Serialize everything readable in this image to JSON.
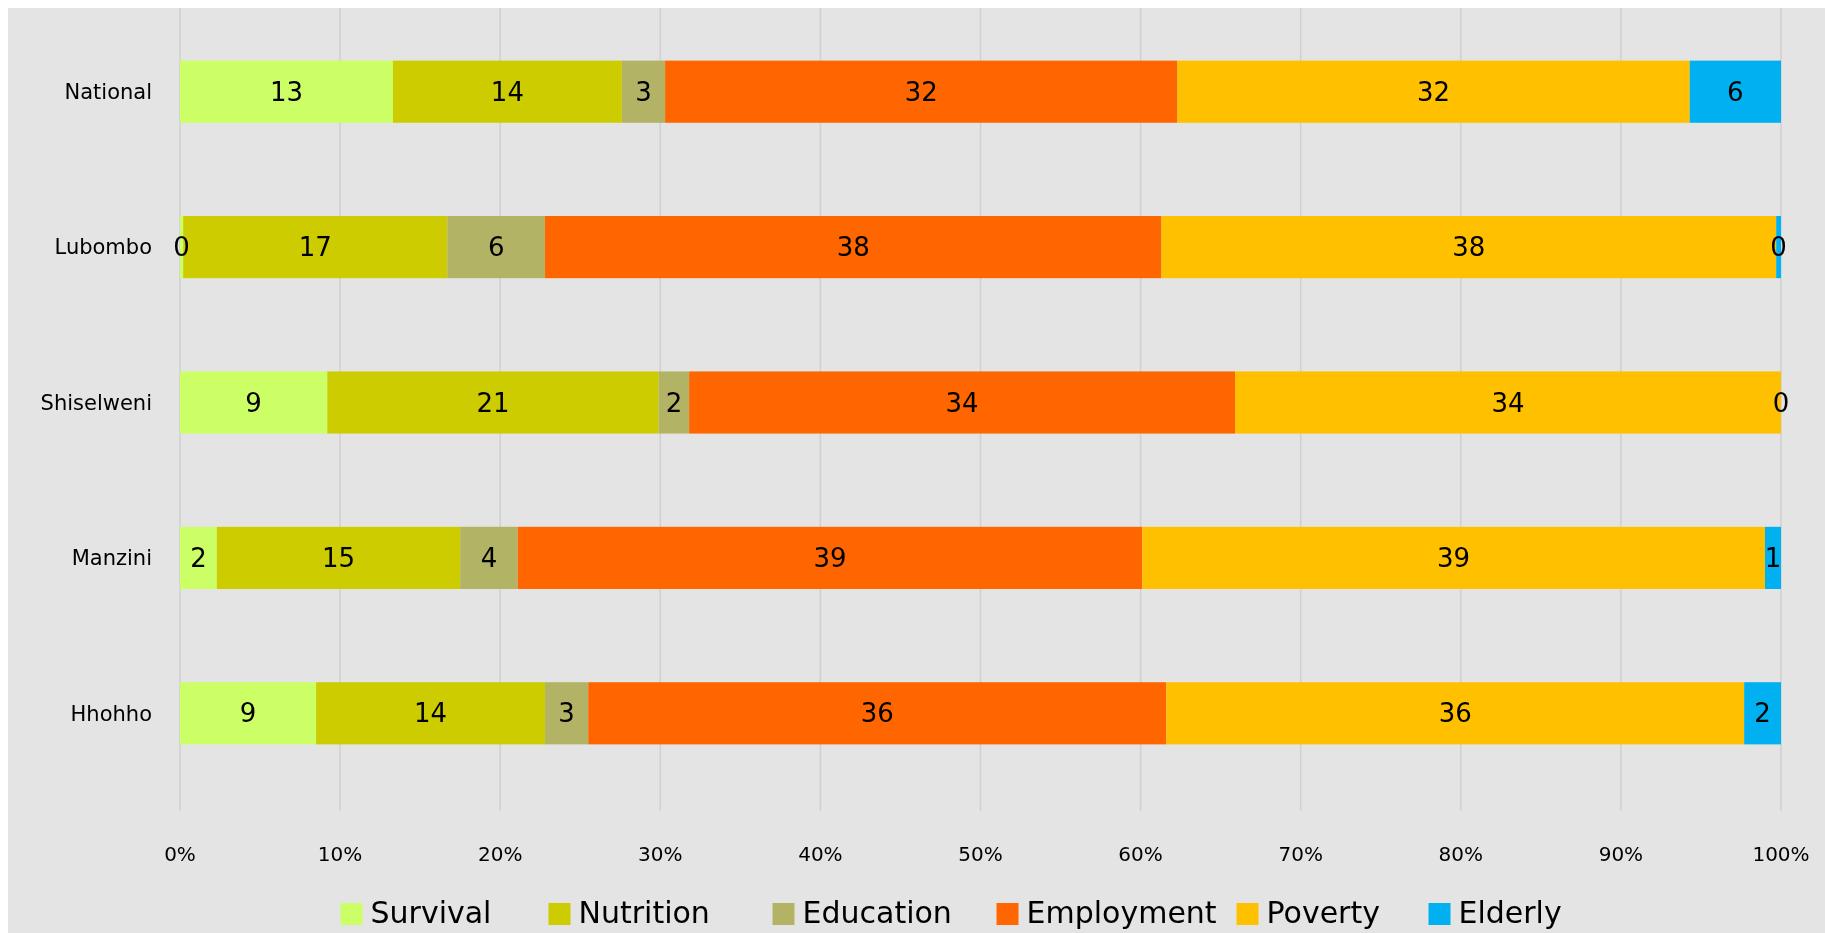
{
  "chart_data": {
    "type": "bar",
    "orientation": "horizontal",
    "stacked": true,
    "categories": [
      "National",
      "Lubombo",
      "Shiselweni",
      "Manzini",
      "Hhohho"
    ],
    "series": [
      {
        "name": "Survival",
        "color": "#ccff66",
        "values": [
          13.3,
          0.2,
          9.2,
          2.3,
          8.5
        ],
        "value_labels": [
          "13",
          "0",
          "9",
          "2",
          "9"
        ]
      },
      {
        "name": "Nutrition",
        "color": "#cccc00",
        "values": [
          14.3,
          16.5,
          20.7,
          15.2,
          14.3
        ],
        "value_labels": [
          "14",
          "17",
          "21",
          "15",
          "14"
        ]
      },
      {
        "name": "Education",
        "color": "#b3b366",
        "values": [
          2.7,
          6.1,
          1.9,
          3.6,
          2.7
        ],
        "value_labels": [
          "3",
          "6",
          "2",
          "4",
          "3"
        ]
      },
      {
        "name": "Employment",
        "color": "#ff6600",
        "values": [
          32,
          38.5,
          34.1,
          39,
          36.1
        ],
        "value_labels": [
          "32",
          "38",
          "34",
          "39",
          "36"
        ]
      },
      {
        "name": "Poverty",
        "color": "#ffc000",
        "values": [
          32,
          38.4,
          34.1,
          38.9,
          36.1
        ],
        "value_labels": [
          "32",
          "38",
          "34",
          "39",
          "36"
        ]
      },
      {
        "name": "Elderly",
        "color": "#00b0f0",
        "values": [
          5.7,
          0.3,
          0,
          1,
          2.3
        ],
        "value_labels": [
          "6",
          "0",
          "0",
          "1",
          "2"
        ]
      }
    ],
    "xlim": [
      0,
      100
    ],
    "xticks": [
      {
        "value": 0,
        "label": "0%"
      },
      {
        "value": 10,
        "label": "10%"
      },
      {
        "value": 20,
        "label": "20%"
      },
      {
        "value": 30,
        "label": "30%"
      },
      {
        "value": 40,
        "label": "40%"
      },
      {
        "value": 50,
        "label": "50%"
      },
      {
        "value": 60,
        "label": "60%"
      },
      {
        "value": 70,
        "label": "70%"
      },
      {
        "value": 80,
        "label": "80%"
      },
      {
        "value": 90,
        "label": "90%"
      },
      {
        "value": 100,
        "label": "100%"
      }
    ],
    "grid": "x",
    "legend": "bottom"
  }
}
